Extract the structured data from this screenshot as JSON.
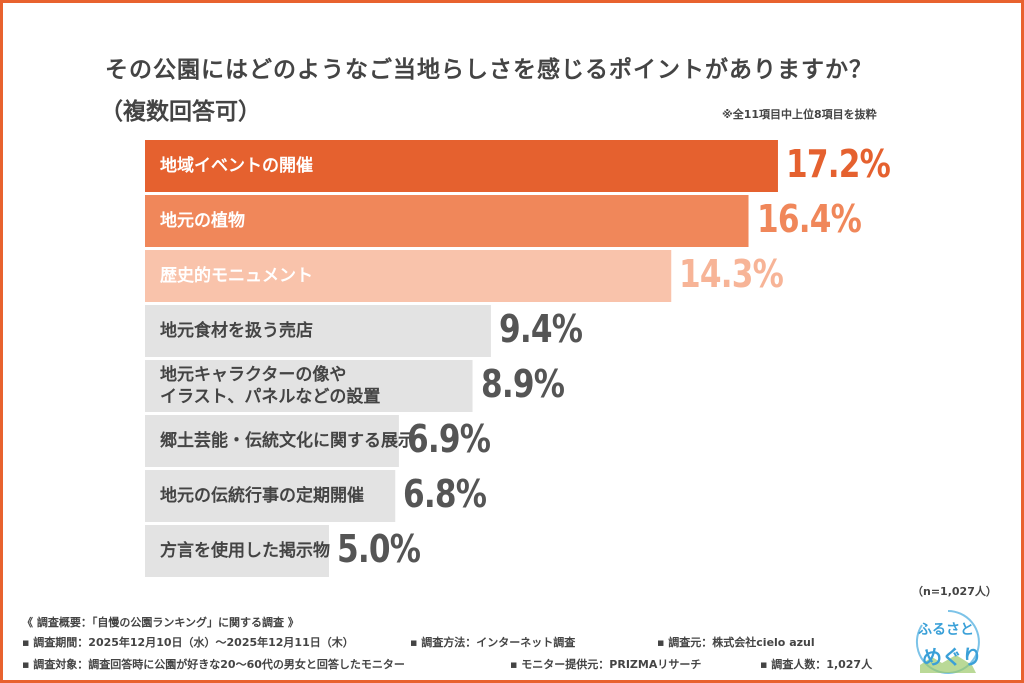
{
  "chart_data": {
    "type": "bar",
    "orientation": "horizontal",
    "title": "その公園にはどのようなご当地らしさを感じるポイントがありますか？",
    "subtitle": "（複数回答可）",
    "note": "※全11項目中上位8項目を抜粋",
    "categories": [
      "地域イベントの開催",
      "地元の植物",
      "歴史的モニュメント",
      "地元食材を扱う売店",
      "地元キャラクターの像や\nイラスト、パネルなどの設置",
      "郷土芸能・伝統文化に関する展示",
      "地元の伝統行事の定期開催",
      "方言を使用した掲示物"
    ],
    "values": [
      17.2,
      16.4,
      14.3,
      9.4,
      8.9,
      6.9,
      6.8,
      5.0
    ],
    "value_labels": [
      "17.2%",
      "16.4%",
      "14.3%",
      "9.4%",
      "8.9%",
      "6.9%",
      "6.8%",
      "5.0%"
    ],
    "unit": "%",
    "bar_colors": [
      "#e5612f",
      "#f0875a",
      "#f9c3ab",
      "#e3e3e3",
      "#e3e3e3",
      "#e3e3e3",
      "#e3e3e3",
      "#e3e3e3"
    ],
    "label_colors": [
      "#ffffff",
      "#ffffff",
      "#ffffff",
      "#444444",
      "#444444",
      "#444444",
      "#444444",
      "#444444"
    ],
    "value_colors": [
      "#e5612f",
      "#f0875a",
      "#f7b497",
      "#555555",
      "#555555",
      "#555555",
      "#555555",
      "#555555"
    ],
    "grid": false,
    "sample_size": "（n=1,027人）"
  },
  "footer": {
    "heading": "《 調査概要：「自慢の公園ランキング」に関する調査 》",
    "period": "▪ 調査期間：2025年12月10日（水）～2025年12月11日（木）",
    "method": "▪ 調査方法：インターネット調査",
    "source": "▪ 調査元：株式会社cielo azul",
    "target": "▪ 調査対象：調査回答時に公園が好きな20～60代の男女と回答したモニター",
    "provider": "▪ モニター提供元：PRIZMAリサーチ",
    "count": "▪ 調査人数：1,027人"
  },
  "logo": {
    "line1": "ふるさと",
    "line2": "めぐり"
  },
  "colors": {
    "accent": "#e8622f"
  }
}
